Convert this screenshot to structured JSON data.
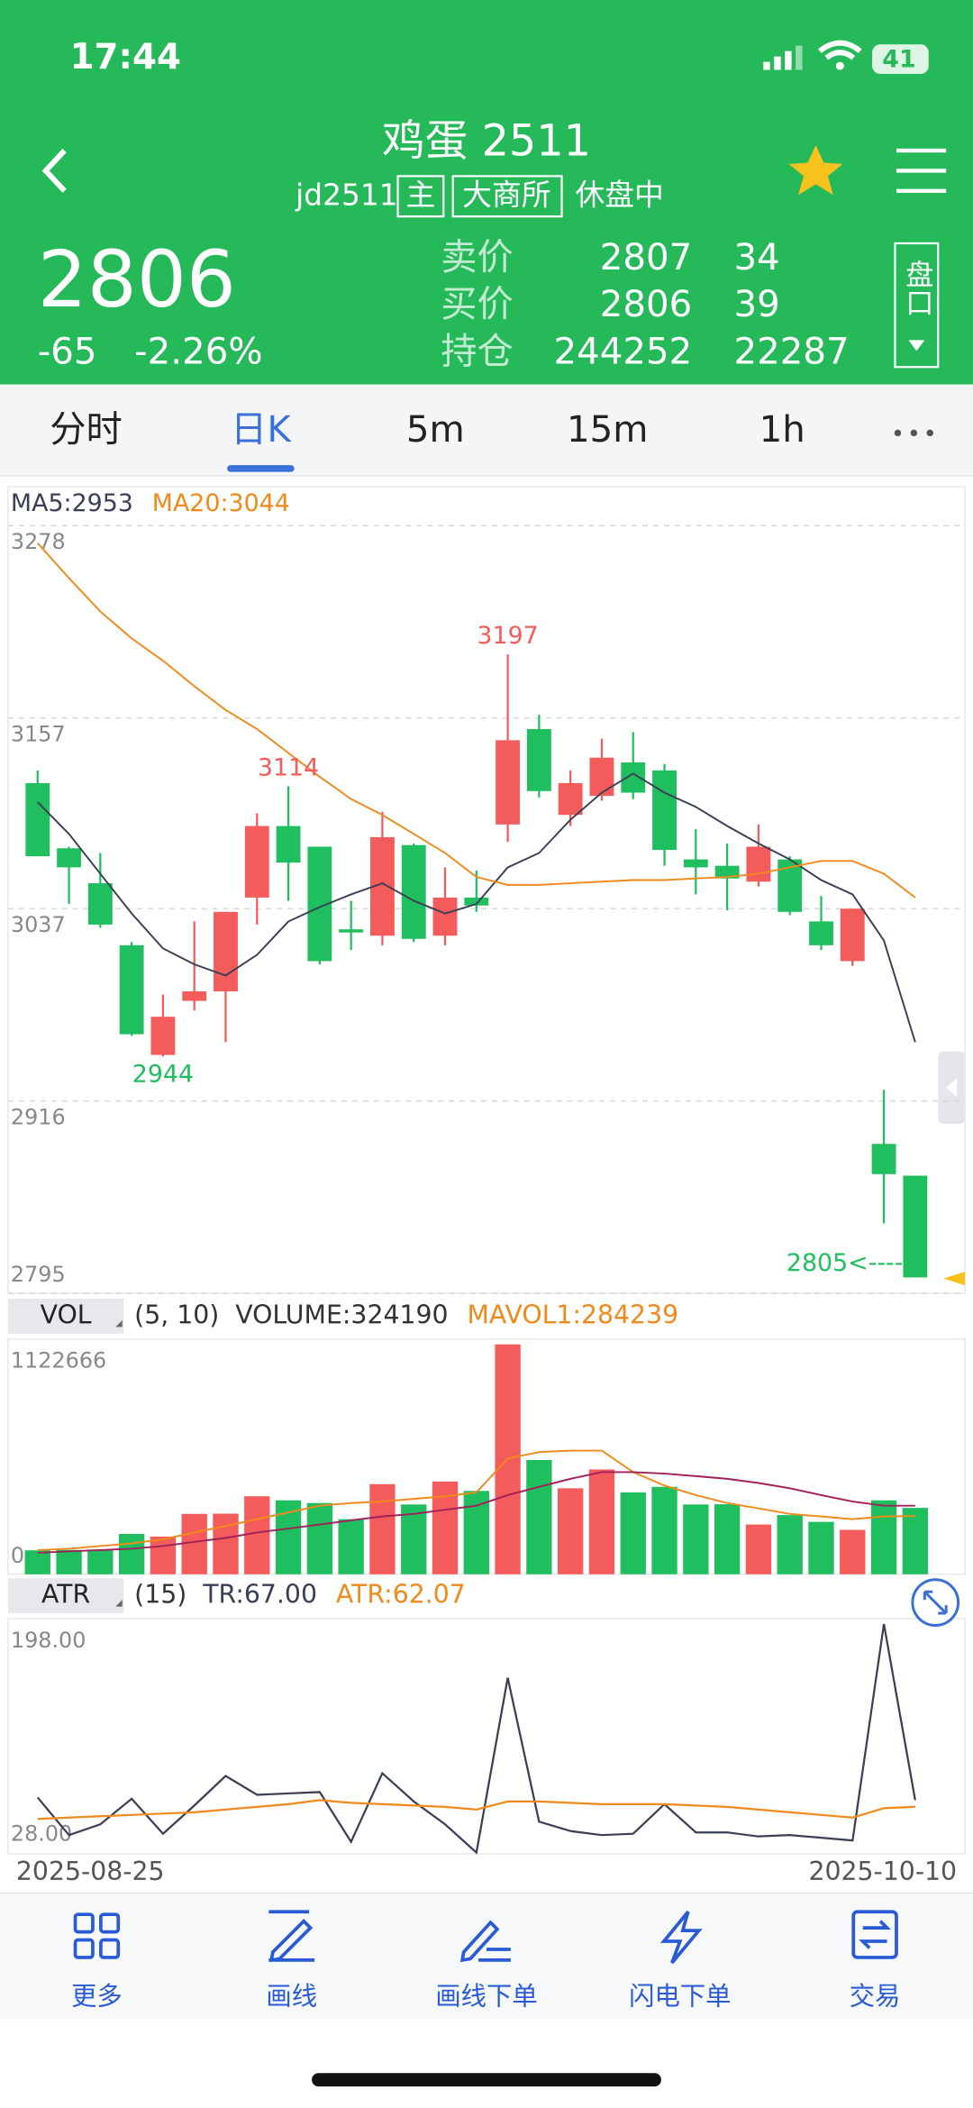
{
  "status_bar": {
    "time": "17:44",
    "battery": "41"
  },
  "header": {
    "title": "鸡蛋 2511",
    "code": "jd2511",
    "badges": [
      "主",
      "大商所"
    ],
    "session": "休盘中"
  },
  "quote": {
    "price": "2806",
    "change": "-65",
    "change_pct": "-2.26%",
    "rows": [
      [
        "卖价",
        "2807",
        "34"
      ],
      [
        "买价",
        "2806",
        "39"
      ],
      [
        "持仓",
        "244252",
        "22287"
      ]
    ],
    "button": "盘口"
  },
  "tabs": [
    "分时",
    "日K",
    "5m",
    "15m",
    "1h"
  ],
  "active_tab": 1,
  "chart_data": [
    {
      "type": "candlestick",
      "up_color": "#f45b5b",
      "down_color": "#1fbf5f",
      "open": [
        3116,
        3075,
        3053,
        3014,
        2945,
        2979,
        2985,
        3044,
        3089,
        3076,
        3024,
        3020,
        3077,
        3020,
        3044,
        3090,
        3150,
        3096,
        3108,
        3129,
        3124,
        3068,
        3064,
        3054,
        3068,
        3029,
        3004,
        2889,
        2869
      ],
      "high": [
        3124,
        3076,
        3072,
        3016,
        2983,
        3029,
        3035,
        3097,
        3114,
        3076,
        3042,
        3098,
        3078,
        3063,
        3061,
        3197,
        3159,
        3124,
        3144,
        3148,
        3128,
        3087,
        3078,
        3090,
        3070,
        3045,
        3037,
        2923,
        2869
      ],
      "low": [
        3070,
        3040,
        3025,
        2957,
        2944,
        2973,
        2953,
        3027,
        3042,
        3002,
        3011,
        3014,
        3016,
        3014,
        3035,
        3079,
        3107,
        3089,
        3105,
        3106,
        3064,
        3046,
        3036,
        3051,
        3033,
        3011,
        3001,
        2839,
        2805
      ],
      "close": [
        3070,
        3063,
        3027,
        2958,
        2969,
        2985,
        3035,
        3089,
        3066,
        3004,
        3022,
        3082,
        3018,
        3044,
        3039,
        3143,
        3111,
        3116,
        3132,
        3110,
        3074,
        3063,
        3056,
        3076,
        3035,
        3014,
        3037,
        2870,
        2805
      ],
      "series": [
        {
          "name": "MA5:2953",
          "color": "#3a3f55",
          "values": [
            3104,
            3084,
            3059,
            3034,
            3012,
            3002,
            2995,
            3008,
            3029,
            3038,
            3046,
            3053,
            3042,
            3034,
            3040,
            3063,
            3072,
            3093,
            3110,
            3122,
            3110,
            3101,
            3089,
            3078,
            3068,
            3055,
            3046,
            3017,
            2953
          ]
        },
        {
          "name": "MA20:3044",
          "color": "#f08a1c",
          "values": [
            3267,
            3245,
            3224,
            3207,
            3193,
            3177,
            3162,
            3150,
            3135,
            3120,
            3106,
            3096,
            3084,
            3072,
            3057,
            3052,
            3052,
            3053,
            3054,
            3055,
            3055,
            3056,
            3057,
            3059,
            3063,
            3067,
            3067,
            3059,
            3044
          ]
        }
      ],
      "ylim": [
        2795,
        3278
      ],
      "yticks": [
        3278,
        3157,
        3037,
        2916,
        2795
      ],
      "grid": true,
      "annotations": [
        {
          "label": "3197",
          "index": 15,
          "at": "high"
        },
        {
          "label": "3114",
          "index": 8,
          "at": "high"
        },
        {
          "label": "2944",
          "index": 4,
          "at": "low"
        },
        {
          "label": "2805<----",
          "index": 28,
          "at": "close"
        }
      ]
    },
    {
      "type": "bar",
      "indicator": "VOL",
      "params": "(5, 10)",
      "series": [
        {
          "name": "VOLUME:324190",
          "kind": "bar",
          "values": [
            117000,
            119000,
            121000,
            197000,
            184000,
            295000,
            296000,
            381000,
            361000,
            348000,
            269000,
            440000,
            341000,
            453000,
            407000,
            1122666,
            558000,
            420000,
            512000,
            400000,
            427000,
            341000,
            342000,
            243000,
            289000,
            256000,
            217000,
            361000,
            324190
          ]
        },
        {
          "name": "MAVOL1:284239",
          "kind": "line",
          "color": "#f08a1c",
          "values": [
            118000,
            125000,
            138000,
            151000,
            171000,
            204000,
            236000,
            269000,
            302000,
            335000,
            348000,
            355000,
            368000,
            381000,
            400000,
            565000,
            597000,
            604000,
            604000,
            499000,
            433000,
            387000,
            348000,
            322000,
            295000,
            282000,
            269000,
            282000,
            284239
          ]
        },
        {
          "kind": "line",
          "color": "#a0225a",
          "values": [
            105000,
            112000,
            118000,
            125000,
            138000,
            158000,
            177000,
            204000,
            223000,
            243000,
            263000,
            282000,
            295000,
            315000,
            335000,
            387000,
            427000,
            466000,
            499000,
            499000,
            492000,
            479000,
            466000,
            446000,
            420000,
            387000,
            355000,
            335000,
            335000
          ]
        }
      ],
      "ylim": [
        0,
        1122666
      ],
      "yticks": [
        1122666,
        0
      ]
    },
    {
      "type": "line",
      "indicator": "ATR",
      "params": "(15)",
      "categories": [
        "2025-08-25",
        null,
        null,
        null,
        null,
        null,
        null,
        null,
        null,
        null,
        null,
        null,
        null,
        null,
        null,
        null,
        null,
        null,
        null,
        null,
        null,
        null,
        null,
        null,
        null,
        null,
        null,
        null,
        "2025-10-10"
      ],
      "series": [
        {
          "name": "TR:67.00",
          "color": "#3a3f55",
          "values": [
            69,
            41,
            49,
            68,
            42,
            63,
            85,
            71,
            72,
            73,
            36,
            87,
            66,
            49,
            28,
            158,
            51,
            44,
            41,
            42,
            64,
            43,
            43,
            40,
            41,
            39,
            37,
            198,
            67
          ]
        },
        {
          "name": "ATR:62.07",
          "color": "#f08a1c",
          "values": [
            53,
            54,
            55,
            56,
            57,
            58,
            60,
            62,
            64,
            67,
            65,
            64,
            63,
            62,
            60,
            66,
            66,
            65,
            64,
            64,
            64,
            63,
            62,
            60,
            58,
            56,
            54,
            61,
            62.07
          ]
        }
      ],
      "ylim": [
        28,
        198
      ],
      "yticks": [
        {
          "value": 198,
          "label": "198.00"
        },
        {
          "value": 28,
          "label": "28.00"
        }
      ]
    }
  ],
  "toolbar": [
    "更多",
    "画线",
    "画线下单",
    "闪电下单",
    "交易"
  ]
}
